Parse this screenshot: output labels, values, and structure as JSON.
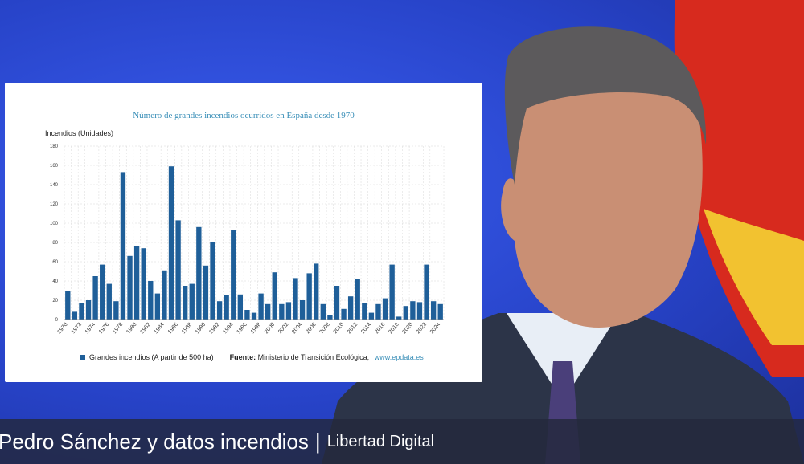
{
  "caption": {
    "main": "Pedro Sánchez y datos incendios",
    "separator": "|",
    "brand": "Libertad Digital"
  },
  "colors": {
    "bar": "#1f5f99",
    "title": "#3a8fb8",
    "grid": "#d8d8d8",
    "caption_bg": "#23283c"
  },
  "chart_data": {
    "type": "bar",
    "title": "Número de grandes incendios ocurridos en España desde 1970",
    "ylabel": "Incendios (Unidades)",
    "xlabel": "",
    "ylim": [
      0,
      180
    ],
    "yticks": [
      0,
      20,
      40,
      60,
      80,
      100,
      120,
      140,
      160,
      180
    ],
    "grid": true,
    "legend_position": "bottom-left",
    "series": [
      {
        "name": "Grandes incendios (A partir de 500 ha)",
        "values": [
          30,
          8,
          17,
          20,
          45,
          57,
          37,
          19,
          153,
          66,
          76,
          74,
          40,
          27,
          51,
          159,
          103,
          35,
          37,
          96,
          56,
          80,
          19,
          25,
          93,
          26,
          10,
          7,
          27,
          16,
          49,
          16,
          18,
          43,
          20,
          48,
          58,
          16,
          5,
          35,
          11,
          24,
          42,
          17,
          7,
          16,
          22,
          57,
          3,
          14,
          19,
          18,
          57,
          19,
          16
        ]
      }
    ],
    "categories": [
      "1970",
      "1971",
      "1972",
      "1973",
      "1974",
      "1975",
      "1976",
      "1977",
      "1978",
      "1979",
      "1980",
      "1981",
      "1982",
      "1983",
      "1984",
      "1985",
      "1986",
      "1987",
      "1988",
      "1989",
      "1990",
      "1991",
      "1992",
      "1993",
      "1994",
      "1995",
      "1996",
      "1997",
      "1998",
      "1999",
      "2000",
      "2001",
      "2002",
      "2003",
      "2004",
      "2005",
      "2006",
      "2007",
      "2008",
      "2009",
      "2010",
      "2011",
      "2012",
      "2013",
      "2014",
      "2015",
      "2016",
      "2017",
      "2018",
      "2019",
      "2020",
      "2021",
      "2022",
      "2023",
      "2024"
    ],
    "tick_labels_x": [
      "1970",
      "1972",
      "1974",
      "1976",
      "1978",
      "1980",
      "1982",
      "1984",
      "1986",
      "1988",
      "1990",
      "1992",
      "1994",
      "1996",
      "1998",
      "2000",
      "2002",
      "2004",
      "2006",
      "2008",
      "2010",
      "2012",
      "2014",
      "2016",
      "2018",
      "2020",
      "2022",
      "2024"
    ],
    "legend_label": "Grandes incendios (A partir de 500 ha)",
    "source_label": "Fuente:",
    "source_text": "Ministerio de Transición Ecológica,",
    "source_url": "www.epdata.es"
  }
}
